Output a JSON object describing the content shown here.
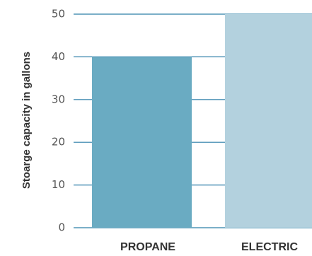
{
  "chart_data": {
    "type": "bar",
    "title": "",
    "xlabel": "",
    "ylabel": "Stoarge capacity in gallons",
    "categories": [
      "PROPANE",
      "ELECTRIC"
    ],
    "values": [
      40,
      50
    ],
    "ylim": [
      0,
      50
    ],
    "yticks": [
      0,
      10,
      20,
      30,
      40,
      50
    ],
    "grid": true,
    "legend": "none",
    "colors": {
      "bars": [
        "#6aabc2",
        "#b3d1de"
      ],
      "gridline": "#2c7fa8",
      "tick_text": "#555555",
      "label_text": "#333333"
    }
  }
}
